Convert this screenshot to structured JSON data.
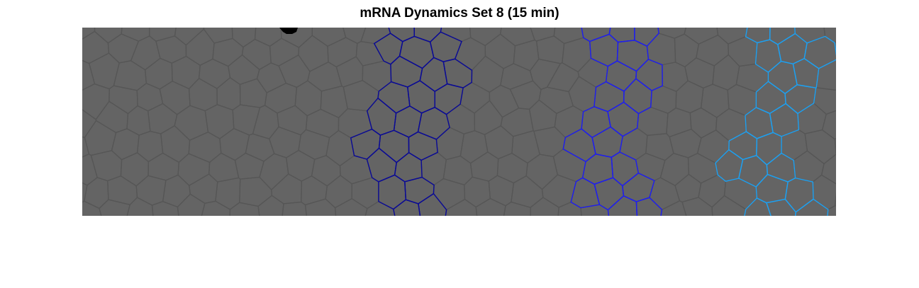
{
  "figure": {
    "title": "mRNA Dynamics Set 8 (15 min)"
  },
  "colors": {
    "background": "#ffffff",
    "tissue": "#646464",
    "cell_border": "#565656",
    "stripe_navy": "#0a0a96",
    "stripe_blue": "#1e1ef0",
    "stripe_cyan": "#1ea0f0",
    "artifact": "#000000"
  },
  "icons": {
    "artifact": "dark-blob-icon"
  }
}
